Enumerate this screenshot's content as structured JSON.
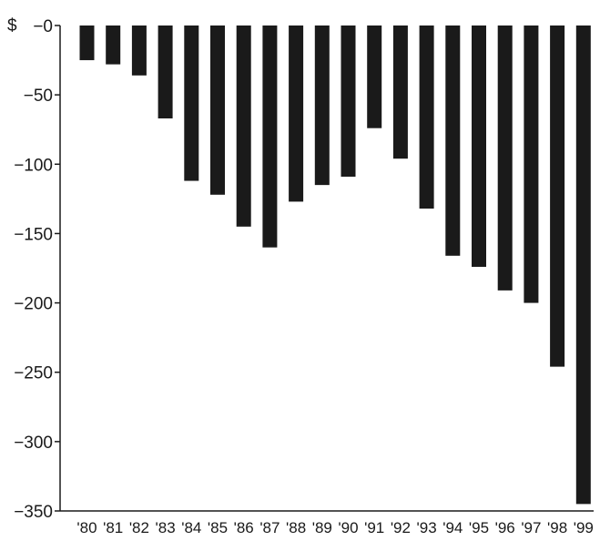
{
  "chart_data": {
    "type": "bar",
    "unit_label": "$",
    "categories": [
      "'80",
      "'81",
      "'82",
      "'83",
      "'84",
      "'85",
      "'86",
      "'87",
      "'88",
      "'89",
      "'90",
      "'91",
      "'92",
      "'93",
      "'94",
      "'95",
      "'96",
      "'97",
      "'98",
      "'99"
    ],
    "values": [
      -25,
      -28,
      -36,
      -67,
      -112,
      -122,
      -145,
      -160,
      -127,
      -115,
      -109,
      -74,
      -96,
      -132,
      -166,
      -174,
      -191,
      -200,
      -246,
      -345
    ],
    "y_ticks": [
      0,
      -50,
      -100,
      -150,
      -200,
      -250,
      -300,
      -350
    ],
    "y_tick_labels": [
      "−0",
      "−50",
      "−100",
      "−150",
      "−200",
      "−250",
      "−300",
      "−350"
    ],
    "ylim": [
      -350,
      0
    ],
    "bar_color": "#1a1a1a",
    "grid": false,
    "legend": "none",
    "title": "",
    "xlabel": "",
    "ylabel": ""
  }
}
